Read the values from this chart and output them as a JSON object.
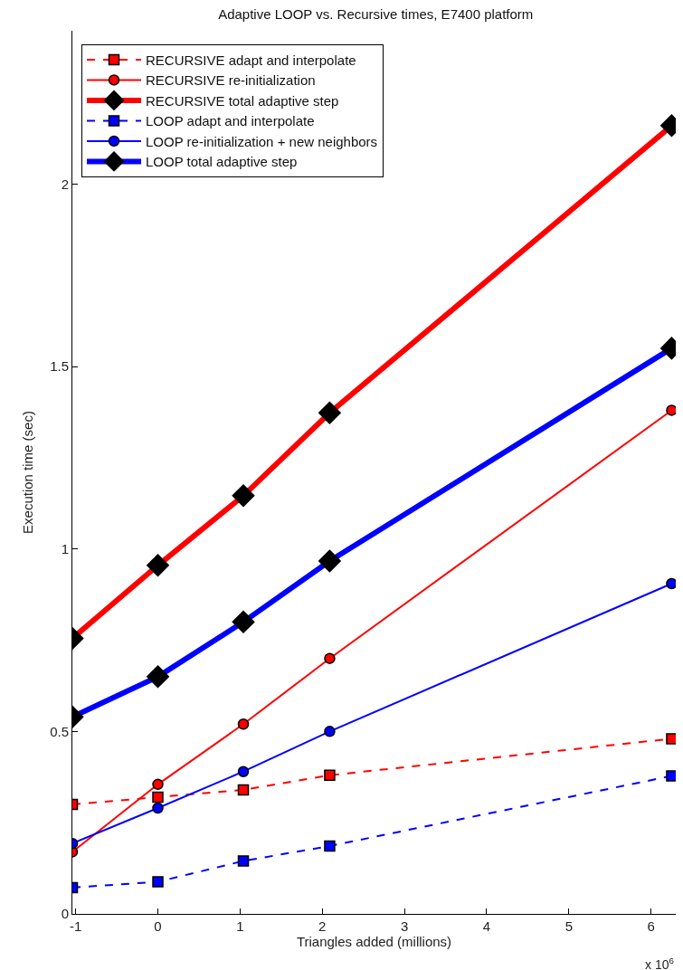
{
  "chart_data": {
    "type": "line",
    "title": "Adaptive LOOP vs. Recursive times, E7400 platform",
    "xlabel": "Triangles added (millions)",
    "ylabel": "Execution time (sec)",
    "x": [
      -1.04,
      0,
      1.04,
      2.09,
      6.25
    ],
    "series": [
      {
        "name": "RECURSIVE adapt and interpolate",
        "color": "#ff0000",
        "marker": "square",
        "line_style": "dashed",
        "values": [
          0.3,
          0.32,
          0.34,
          0.38,
          0.48
        ]
      },
      {
        "name": "RECURSIVE re-initialization",
        "color": "#ff0000",
        "marker": "circle",
        "line_style": "solid",
        "values": [
          0.17,
          0.355,
          0.52,
          0.7,
          1.38
        ]
      },
      {
        "name": "RECURSIVE total adaptive step",
        "color": "#ff0000",
        "marker": "diamond",
        "line_style": "solid",
        "values": [
          0.755,
          0.955,
          1.146,
          1.373,
          2.16
        ]
      },
      {
        "name": "LOOP adapt and interpolate",
        "color": "#0000ff",
        "marker": "square",
        "line_style": "dashed",
        "values": [
          0.072,
          0.088,
          0.145,
          0.186,
          0.378
        ]
      },
      {
        "name": "LOOP re-initialization + new neighbors",
        "color": "#0000ff",
        "marker": "circle",
        "line_style": "solid",
        "values": [
          0.193,
          0.29,
          0.39,
          0.5,
          0.905
        ]
      },
      {
        "name": "LOOP total adaptive step",
        "color": "#0000ff",
        "marker": "diamond",
        "line_style": "solid",
        "values": [
          0.54,
          0.65,
          0.8,
          0.967,
          1.55
        ]
      }
    ],
    "xlim": [
      -1.04,
      6.3
    ],
    "xticks": [
      -1,
      0,
      1,
      2,
      3,
      4,
      5,
      6
    ],
    "ylim": [
      0,
      2.42
    ],
    "yticks": [
      0,
      0.5,
      1,
      1.5,
      2
    ],
    "legend": "top left",
    "annotations": [
      "x 10$^{6}$"
    ]
  }
}
